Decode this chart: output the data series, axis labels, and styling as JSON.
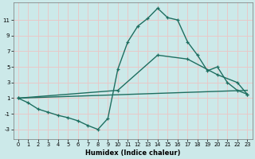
{
  "xlabel": "Humidex (Indice chaleur)",
  "ylabel": "",
  "bg_color": "#cce9e9",
  "grid_color": "#e8c8c8",
  "line_color": "#1e6e60",
  "xlim": [
    -0.5,
    23.5
  ],
  "ylim": [
    -4.2,
    13.2
  ],
  "yticks": [
    -3,
    -1,
    1,
    3,
    5,
    7,
    9,
    11
  ],
  "xticks": [
    0,
    1,
    2,
    3,
    4,
    5,
    6,
    7,
    8,
    9,
    10,
    11,
    12,
    13,
    14,
    15,
    16,
    17,
    18,
    19,
    20,
    21,
    22,
    23
  ],
  "line1_x": [
    0,
    1,
    2,
    3,
    4,
    5,
    6,
    7,
    8,
    9,
    10,
    11,
    12,
    13,
    14,
    15,
    16,
    17,
    18,
    19,
    20,
    21,
    22,
    23
  ],
  "line1_y": [
    1.0,
    0.4,
    -0.4,
    -0.8,
    -1.2,
    -1.5,
    -1.9,
    -2.5,
    -3.0,
    -1.6,
    4.7,
    8.2,
    10.2,
    11.2,
    12.5,
    11.3,
    11.0,
    8.2,
    6.5,
    4.5,
    5.0,
    3.0,
    2.0,
    1.5
  ],
  "line2_x": [
    0,
    10,
    14,
    17,
    20,
    22,
    23
  ],
  "line2_y": [
    1.0,
    2.0,
    6.5,
    6.0,
    4.0,
    3.0,
    1.5
  ],
  "line3_x": [
    0,
    23
  ],
  "line3_y": [
    1.0,
    2.0
  ]
}
